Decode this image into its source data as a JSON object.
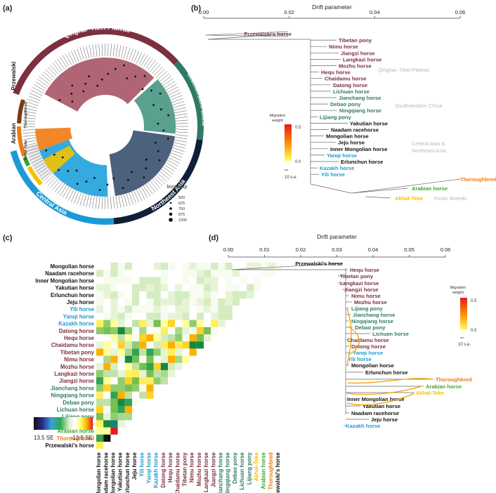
{
  "panels": {
    "a": "(a)",
    "b": "(b)",
    "c": "(c)",
    "d": "(d)"
  },
  "colors": {
    "qinghai": "#7b2f3f",
    "southwest": "#2f7a66",
    "northeast": "#0f1f36",
    "central": "#1c9ad6",
    "thoroughbred": "#f07a10",
    "arabian": "#3aa52c",
    "akhal": "#f2c200",
    "przewalski": "#7a3b10",
    "black": "#111111"
  },
  "panel_a": {
    "regions": [
      "Qinghai–Tibet Plateau",
      "Southwestern China",
      "Northeast Asia",
      "Central Asia",
      "Przewalski",
      "Arabian",
      "Thoroughbred",
      "Akhal-Teke"
    ],
    "bootstrap_title": "bootstrap",
    "bootstrap_values": [
      "500",
      "625",
      "750",
      "875",
      "1000"
    ]
  },
  "panel_b": {
    "axis_title": "Drift parameter",
    "ticks": [
      "0.00",
      "0.02",
      "0.04",
      "0.06"
    ],
    "tick_values": [
      0,
      0.02,
      0.04,
      0.06
    ],
    "xlim": [
      0,
      0.06
    ],
    "legend_title": "Migration weight",
    "legend_max": "0.5",
    "legend_min": "0.0",
    "se_label": "10 s.e.",
    "group_labels": [
      "Qinghai–Tibet Plateau",
      "Southwestern China",
      "Central Asia & Northeast Asia",
      "Exotic Breeds"
    ],
    "leaves": [
      {
        "name": "Przewalski's horse",
        "color": "#7b2f3f"
      },
      {
        "name": "Tibetan pony",
        "color": "#7b2f3f"
      },
      {
        "name": "Nimu horse",
        "color": "#7b2f3f"
      },
      {
        "name": "Jiangzi horse",
        "color": "#7b2f3f"
      },
      {
        "name": "Langkazi horse",
        "color": "#7b2f3f"
      },
      {
        "name": "Mozhu horse",
        "color": "#7b2f3f"
      },
      {
        "name": "Hequ horse",
        "color": "#7b2f3f"
      },
      {
        "name": "Chaidamu horse",
        "color": "#7b2f3f"
      },
      {
        "name": "Datong horse",
        "color": "#7b2f3f"
      },
      {
        "name": "Lichuan horse",
        "color": "#2f7a66"
      },
      {
        "name": "Jianchang horse",
        "color": "#2f7a66"
      },
      {
        "name": "Debao pony",
        "color": "#2f7a66"
      },
      {
        "name": "Ningqiang horse",
        "color": "#2f7a66"
      },
      {
        "name": "Lijiang pony",
        "color": "#2f7a66"
      },
      {
        "name": "Yakutian horse",
        "color": "#111111"
      },
      {
        "name": "Naadam racehorse",
        "color": "#111111"
      },
      {
        "name": "Mongolian horse",
        "color": "#111111"
      },
      {
        "name": "Jeju horse",
        "color": "#111111"
      },
      {
        "name": "Inner Mongolian horse",
        "color": "#111111"
      },
      {
        "name": "Yanqi horse",
        "color": "#1c9ad6"
      },
      {
        "name": "Erlunchun horse",
        "color": "#111111"
      },
      {
        "name": "Kazakh horse",
        "color": "#1c9ad6"
      },
      {
        "name": "Yili horse",
        "color": "#1c9ad6"
      },
      {
        "name": "Thoroughbred",
        "color": "#f07a10"
      },
      {
        "name": "Arabian horse",
        "color": "#3aa52c"
      },
      {
        "name": "Akhal-Teke",
        "color": "#f2c200"
      }
    ]
  },
  "panel_c": {
    "scale_left": "13.5 SE",
    "scale_right": "−13.5 SE",
    "breeds": [
      {
        "name": "Mongolian horse",
        "color": "#111111"
      },
      {
        "name": "Naadam racehorse",
        "color": "#111111"
      },
      {
        "name": "Inner Mongolian horse",
        "color": "#111111"
      },
      {
        "name": "Yakutian horse",
        "color": "#111111"
      },
      {
        "name": "Erlunchun horse",
        "color": "#111111"
      },
      {
        "name": "Jeju horse",
        "color": "#111111"
      },
      {
        "name": "Yili horse",
        "color": "#1c9ad6"
      },
      {
        "name": "Yanqi horse",
        "color": "#1c9ad6"
      },
      {
        "name": "Kazakh horse",
        "color": "#1c9ad6"
      },
      {
        "name": "Datong horse",
        "color": "#7b2f3f"
      },
      {
        "name": "Hequ horse",
        "color": "#7b2f3f"
      },
      {
        "name": "Chaidamu horse",
        "color": "#7b2f3f"
      },
      {
        "name": "Tibetan pony",
        "color": "#7b2f3f"
      },
      {
        "name": "Nimu horse",
        "color": "#7b2f3f"
      },
      {
        "name": "Mozhu horse",
        "color": "#7b2f3f"
      },
      {
        "name": "Langkazi horse",
        "color": "#7b2f3f"
      },
      {
        "name": "Jiangzi horse",
        "color": "#7b2f3f"
      },
      {
        "name": "Jianchang horse",
        "color": "#2f7a66"
      },
      {
        "name": "Ningqiang horse",
        "color": "#2f7a66"
      },
      {
        "name": "Debao pony",
        "color": "#2f7a66"
      },
      {
        "name": "Lichuan horse",
        "color": "#2f7a66"
      },
      {
        "name": "Lijiang pony",
        "color": "#2f7a66"
      },
      {
        "name": "Akhal-Teke",
        "color": "#f2c200"
      },
      {
        "name": "Arabian horse",
        "color": "#3aa52c"
      },
      {
        "name": "Thoroughbred",
        "color": "#f07a10"
      },
      {
        "name": "Przewalski's horse",
        "color": "#111111"
      }
    ]
  },
  "panel_d": {
    "axis_title": "Drift parameter",
    "ticks": [
      "0.00",
      "0.01",
      "0.02",
      "0.03",
      "0.04",
      "0.05",
      "0.06"
    ],
    "tick_values": [
      0,
      0.01,
      0.02,
      0.03,
      0.04,
      0.05,
      0.06
    ],
    "xlim": [
      0,
      0.06
    ],
    "legend_title": "Migration weight",
    "legend_max": "0.5",
    "legend_min": "0.0",
    "se_label": "10 s.e.",
    "leaves": [
      {
        "name": "Przewalski's horse",
        "color": "#111111"
      },
      {
        "name": "Hequ horse",
        "color": "#7b2f3f"
      },
      {
        "name": "Tibetan pony",
        "color": "#7b2f3f"
      },
      {
        "name": "Langkazi horse",
        "color": "#7b2f3f"
      },
      {
        "name": "Jiangzi horse",
        "color": "#7b2f3f"
      },
      {
        "name": "Nimu horse",
        "color": "#7b2f3f"
      },
      {
        "name": "Mozhu horse",
        "color": "#7b2f3f"
      },
      {
        "name": "Lijiang pony",
        "color": "#2f7a66"
      },
      {
        "name": "Jianchang horse",
        "color": "#2f7a66"
      },
      {
        "name": "Ningqiang horse",
        "color": "#2f7a66"
      },
      {
        "name": "Debao pony",
        "color": "#2f7a66"
      },
      {
        "name": "Lichuan horse",
        "color": "#2f7a66"
      },
      {
        "name": "Chaidamu horse",
        "color": "#7b2f3f"
      },
      {
        "name": "Datong horse",
        "color": "#7b2f3f"
      },
      {
        "name": "Yanqi horse",
        "color": "#1c9ad6"
      },
      {
        "name": "Yili horse",
        "color": "#1c9ad6"
      },
      {
        "name": "Mongolian horse",
        "color": "#111111"
      },
      {
        "name": "Erlunchun horse",
        "color": "#111111"
      },
      {
        "name": "Thoroughbred",
        "color": "#f07a10"
      },
      {
        "name": "Arabian horse",
        "color": "#3aa52c"
      },
      {
        "name": "Akhal-Teke",
        "color": "#f2c200"
      },
      {
        "name": "Inner Mongolian horse",
        "color": "#111111"
      },
      {
        "name": "Yakutian horse",
        "color": "#111111"
      },
      {
        "name": "Naadam racehorse",
        "color": "#111111"
      },
      {
        "name": "Jeju horse",
        "color": "#111111"
      },
      {
        "name": "Kazakh horse",
        "color": "#1c9ad6"
      }
    ]
  }
}
